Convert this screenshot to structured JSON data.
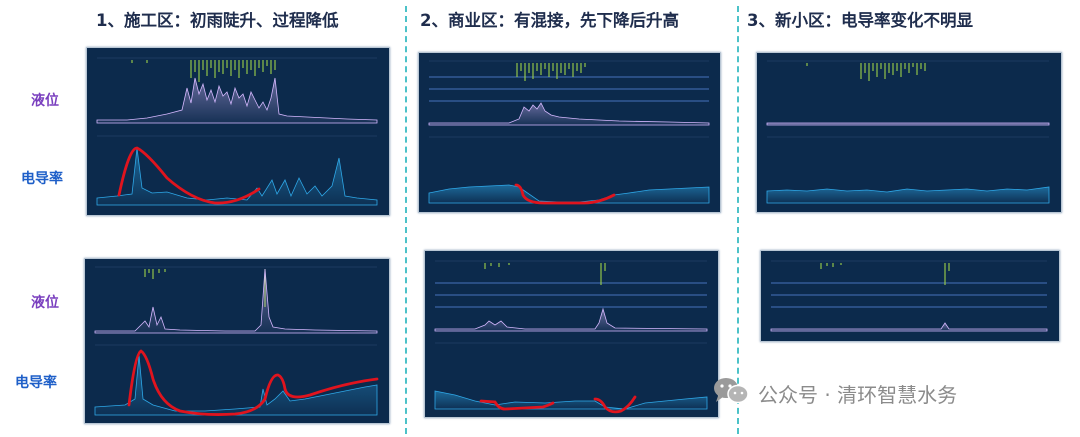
{
  "columns": [
    {
      "title": "1、施工区：初雨陡升、过程降低"
    },
    {
      "title": "2、商业区：有混接，先下降后升高"
    },
    {
      "title": "3、新小区：电导率变化不明显"
    }
  ],
  "row_labels": {
    "top": {
      "level": "液位",
      "conductivity": "电导率"
    },
    "bottom": {
      "level": "液位",
      "conductivity": "电导率"
    }
  },
  "watermark": {
    "text": "公众号 · 清环智慧水务",
    "icon": "wechat-icon"
  },
  "colors": {
    "panel_bg": "#0c2a4c",
    "level_line": "#d5b8ff",
    "rain_bars": "#9fd34a",
    "conductivity_line": "#2ea8e8",
    "highlight": "#e0141e",
    "title_text": "#1f2d4d",
    "level_label": "#7a3fbf",
    "conductivity_label": "#1e5fc8",
    "separator": "#4cc2c8"
  }
}
